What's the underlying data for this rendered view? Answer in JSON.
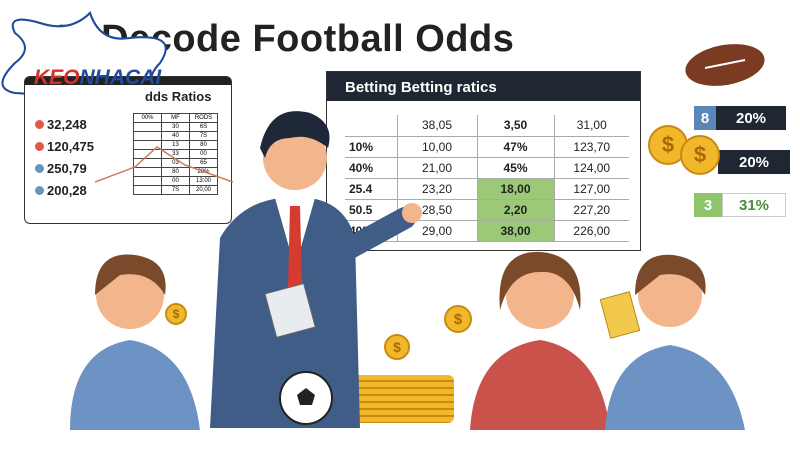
{
  "title": "How to Decode Football Odds",
  "visible_title": "H   Decode Football Odds",
  "logo": {
    "prefix": "KEO",
    "suffix": "NHACAI"
  },
  "left_panel": {
    "title": "dds Ratios",
    "values": [
      {
        "label": "32,248",
        "color": "#e05a47"
      },
      {
        "label": "120,475",
        "color": "#e05a47"
      },
      {
        "label": "250,79",
        "color": "#6a93bd"
      },
      {
        "label": "200,28",
        "color": "#6a93bd"
      }
    ],
    "table": [
      [
        "00%",
        "MF",
        "RODS"
      ],
      [
        "",
        "30",
        "6S"
      ],
      [
        "",
        "40",
        "7S"
      ],
      [
        "",
        "13",
        "80"
      ],
      [
        "",
        "33",
        "00"
      ],
      [
        "",
        "03",
        "65"
      ],
      [
        "",
        "80",
        "28%"
      ],
      [
        "",
        "00",
        "13:00"
      ],
      [
        "",
        "7S",
        "20,00"
      ]
    ]
  },
  "right_panel": {
    "title": "Betting Betting ratics",
    "rows": [
      [
        "",
        "38,05",
        "3,50",
        "31,00"
      ],
      [
        "10%",
        "10,00",
        "47%",
        "123,70"
      ],
      [
        "40%",
        "21,00",
        "45%",
        "124,00"
      ],
      [
        "25.4",
        "23,20",
        "18,00",
        "127,00"
      ],
      [
        "50.5",
        "28,50",
        "2,20",
        "227,20"
      ],
      [
        "40%",
        "29,00",
        "38,00",
        "226,00"
      ]
    ],
    "highlight_color": "#9cc978"
  },
  "stats": [
    {
      "left": "8",
      "right": "20%",
      "left_color": "#5a86b8",
      "right_color": "#1f2733"
    },
    {
      "left": "",
      "right": "20%",
      "left_color": "#5a86b8",
      "right_color": "#1f2733"
    },
    {
      "left": "3",
      "right": "31%",
      "left_color": "#8fc46a",
      "right_color": "#4a8d3a"
    }
  ],
  "coin_symbol": "$"
}
